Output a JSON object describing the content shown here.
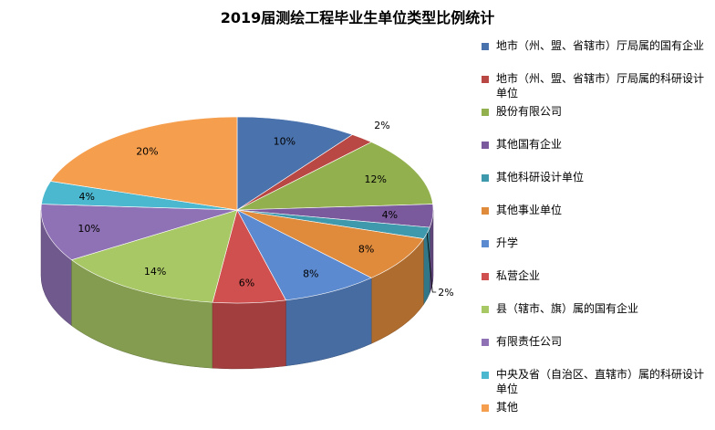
{
  "chart_data": {
    "type": "pie",
    "title": "2019届测绘工程毕业生单位类型比例统计",
    "legend_position": "right",
    "slices": [
      {
        "label": "地市（州、盟、省辖市）厅局属的国有企业",
        "value": 10,
        "display": "10%",
        "color": "#4a72ad"
      },
      {
        "label": "地市（州、盟、省辖市）厅局属的科研设计单位",
        "value": 2,
        "display": "2%",
        "color": "#b94743"
      },
      {
        "label": "股份有限公司",
        "value": 12,
        "display": "12%",
        "color": "#93b04f"
      },
      {
        "label": "其他国有企业",
        "value": 4,
        "display": "4%",
        "color": "#7a5a9c"
      },
      {
        "label": "其他科研设计单位",
        "value": 2,
        "display": "2%",
        "color": "#3f99ad"
      },
      {
        "label": "其他事业单位",
        "value": 8,
        "display": "8%",
        "color": "#e08a3c"
      },
      {
        "label": "升学",
        "value": 8,
        "display": "8%",
        "color": "#5b8ad0"
      },
      {
        "label": "私营企业",
        "value": 6,
        "display": "6%",
        "color": "#d0504f"
      },
      {
        "label": "县（辖市、旗）属的国有企业",
        "value": 14,
        "display": "14%",
        "color": "#a8c865"
      },
      {
        "label": "有限责任公司",
        "value": 10,
        "display": "10%",
        "color": "#8f72b5"
      },
      {
        "label": "中央及省（自治区、直辖市）属的科研设计单位",
        "value": 4,
        "display": "4%",
        "color": "#4cb8d0"
      },
      {
        "label": "其他",
        "value": 20,
        "display": "20%",
        "color": "#f59e4e"
      }
    ]
  }
}
